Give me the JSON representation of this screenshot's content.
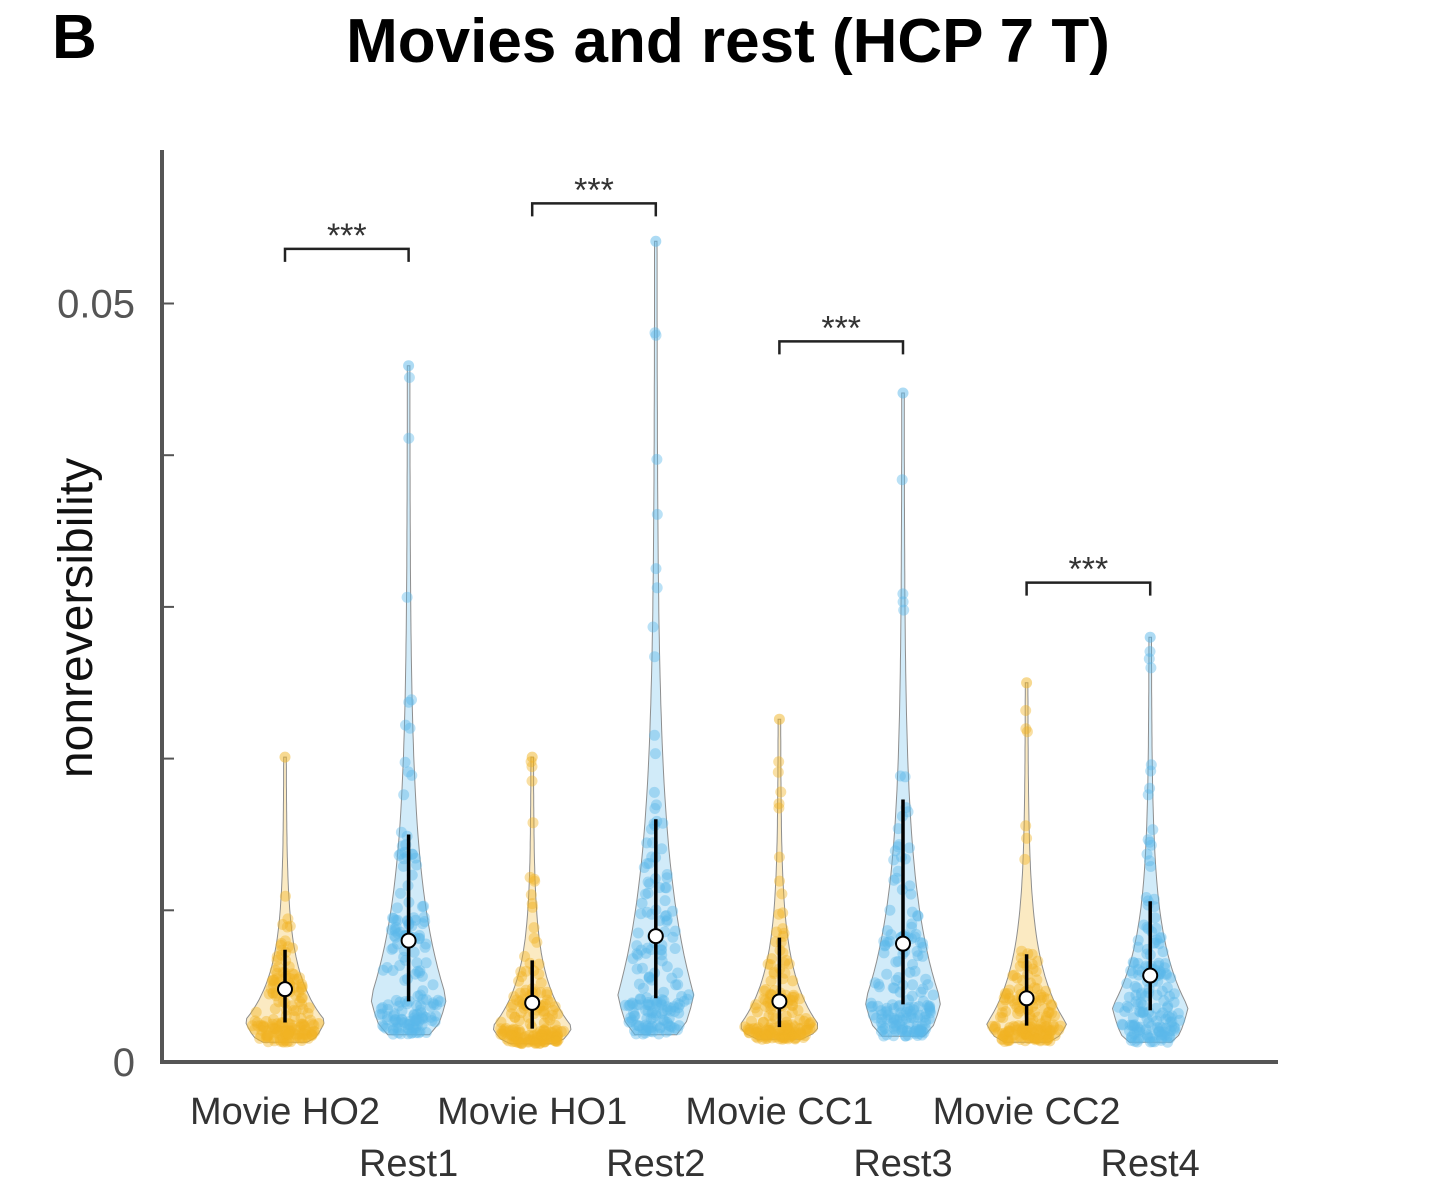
{
  "panel_label": "B",
  "chart_data": {
    "type": "violin",
    "title": "Movies and rest (HCP 7 T)",
    "xlabel": "",
    "ylabel": "nonreversibility",
    "ylim": [
      0,
      0.06
    ],
    "yticks": [
      0,
      0.01,
      0.02,
      0.03,
      0.04,
      0.05
    ],
    "ytick_labels": [
      "0",
      "",
      "",
      "",
      "",
      "0.05"
    ],
    "categories": [
      "Movie HO2",
      "Rest1",
      "Movie HO1",
      "Rest2",
      "Movie CC1",
      "Rest3",
      "Movie CC2",
      "Rest4"
    ],
    "category_label_rows": [
      0,
      1,
      0,
      1,
      0,
      1,
      0,
      1
    ],
    "colors": {
      "movie": "#F0B323",
      "rest": "#5BB8EA",
      "median_marker": "#ffffff",
      "iqr_line": "#000000",
      "axis": "#555555"
    },
    "series": [
      {
        "category": "Movie HO2",
        "group": "movie",
        "min": 0.0013,
        "max": 0.0201,
        "median": 0.0048,
        "q1": 0.0026,
        "q3": 0.0074
      },
      {
        "category": "Rest1",
        "group": "rest",
        "min": 0.0018,
        "max": 0.0459,
        "median": 0.008,
        "q1": 0.004,
        "q3": 0.015
      },
      {
        "category": "Movie HO1",
        "group": "movie",
        "min": 0.0012,
        "max": 0.0201,
        "median": 0.0039,
        "q1": 0.0022,
        "q3": 0.0067
      },
      {
        "category": "Rest2",
        "group": "rest",
        "min": 0.0018,
        "max": 0.0541,
        "median": 0.0083,
        "q1": 0.0042,
        "q3": 0.016
      },
      {
        "category": "Movie CC1",
        "group": "movie",
        "min": 0.0015,
        "max": 0.0226,
        "median": 0.004,
        "q1": 0.0023,
        "q3": 0.0082
      },
      {
        "category": "Rest3",
        "group": "rest",
        "min": 0.0017,
        "max": 0.0441,
        "median": 0.0078,
        "q1": 0.0038,
        "q3": 0.0173
      },
      {
        "category": "Movie CC2",
        "group": "movie",
        "min": 0.0013,
        "max": 0.025,
        "median": 0.0042,
        "q1": 0.0024,
        "q3": 0.0071
      },
      {
        "category": "Rest4",
        "group": "rest",
        "min": 0.0013,
        "max": 0.028,
        "median": 0.0057,
        "q1": 0.0034,
        "q3": 0.0106
      }
    ],
    "significance": [
      {
        "from": "Movie HO2",
        "to": "Rest1",
        "label": "***",
        "level": 0.0536
      },
      {
        "from": "Movie HO1",
        "to": "Rest2",
        "label": "***",
        "level": 0.0566
      },
      {
        "from": "Movie CC1",
        "to": "Rest3",
        "label": "***",
        "level": 0.0475
      },
      {
        "from": "Movie CC2",
        "to": "Rest4",
        "label": "***",
        "level": 0.0316
      }
    ],
    "grid": false,
    "legend": "none"
  }
}
